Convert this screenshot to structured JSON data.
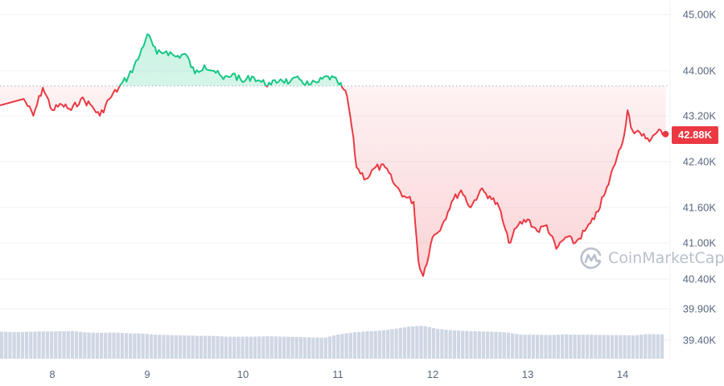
{
  "chart_data": {
    "type": "line",
    "title": "",
    "xlabel": "",
    "ylabel": "",
    "baseline_price": 43730,
    "current_price_label": "42.88K",
    "current_price": 42880,
    "ylim": [
      39200,
      45200
    ],
    "y_ticks": [
      "45.00K",
      "44.00K",
      "43.20K",
      "42.40K",
      "41.60K",
      "41.00K",
      "40.40K",
      "39.90K",
      "39.40K"
    ],
    "x_ticks": [
      "8",
      "9",
      "10",
      "11",
      "12",
      "13",
      "14"
    ],
    "colors": {
      "up": "#16c784",
      "down": "#ea3943",
      "volume": "#cfd6e4",
      "grid": "#eff2f5",
      "axis_text": "#58667e"
    },
    "series": [
      {
        "name": "Price",
        "x": [
          "7.7",
          "7.8",
          "7.9",
          "8.0",
          "8.1",
          "8.2",
          "8.3",
          "8.4",
          "8.5",
          "8.6",
          "8.7",
          "8.8",
          "8.9",
          "9.0",
          "9.1",
          "9.2",
          "9.3",
          "9.4",
          "9.5",
          "9.6",
          "9.7",
          "9.8",
          "9.9",
          "10.0",
          "10.1",
          "10.2",
          "10.3",
          "10.4",
          "10.5",
          "10.6",
          "10.7",
          "10.8",
          "10.9",
          "11.0",
          "11.05",
          "11.1",
          "11.15",
          "11.2",
          "11.3",
          "11.4",
          "11.5",
          "11.6",
          "11.7",
          "11.8",
          "11.85",
          "11.9",
          "12.0",
          "12.1",
          "12.2",
          "12.3",
          "12.4",
          "12.5",
          "12.6",
          "12.7",
          "12.75",
          "12.8",
          "12.9",
          "13.0",
          "13.1",
          "13.2",
          "13.3",
          "13.4",
          "13.5",
          "13.6",
          "13.7",
          "13.8",
          "13.85",
          "13.9",
          "14.0",
          "14.05",
          "14.1",
          "14.2",
          "14.3",
          "14.4",
          "14.45"
        ],
        "values": [
          43500,
          43200,
          43700,
          43300,
          43400,
          43300,
          43500,
          43400,
          43200,
          43500,
          43700,
          43900,
          44200,
          44650,
          44300,
          44350,
          44250,
          44300,
          43950,
          44100,
          44000,
          43850,
          43950,
          43800,
          43900,
          43800,
          43750,
          43850,
          43800,
          43850,
          43750,
          43800,
          43900,
          43800,
          43700,
          43550,
          43000,
          42300,
          42100,
          42300,
          42300,
          42000,
          41800,
          41700,
          40700,
          40450,
          41100,
          41300,
          41700,
          41900,
          41600,
          41900,
          41800,
          41600,
          41300,
          41000,
          41300,
          41400,
          41200,
          41300,
          40900,
          41100,
          41000,
          41200,
          41400,
          41800,
          42000,
          42300,
          42750,
          43300,
          42950,
          42850,
          42800,
          42950,
          42880
        ]
      },
      {
        "name": "Volume",
        "values": [
          72,
          71,
          72,
          73,
          73,
          74,
          70,
          69,
          70,
          68,
          67,
          64,
          63,
          62,
          61,
          61,
          59,
          59,
          59,
          60,
          59,
          58,
          57,
          56,
          65,
          70,
          73,
          75,
          80,
          86,
          88,
          80,
          76,
          74,
          73,
          72,
          70,
          64,
          64,
          63,
          65,
          64,
          64,
          63,
          63,
          62,
          66,
          65
        ]
      }
    ]
  },
  "y_axis": {
    "labels": [
      "45.00K",
      "44.00K",
      "43.20K",
      "42.40K",
      "41.60K",
      "41.00K",
      "40.40K",
      "39.90K",
      "39.40K"
    ]
  },
  "x_axis": {
    "labels": [
      "8",
      "9",
      "10",
      "11",
      "12",
      "13",
      "14"
    ]
  },
  "price_badge": {
    "label": "42.88K"
  },
  "watermark": {
    "text": "CoinMarketCap"
  }
}
